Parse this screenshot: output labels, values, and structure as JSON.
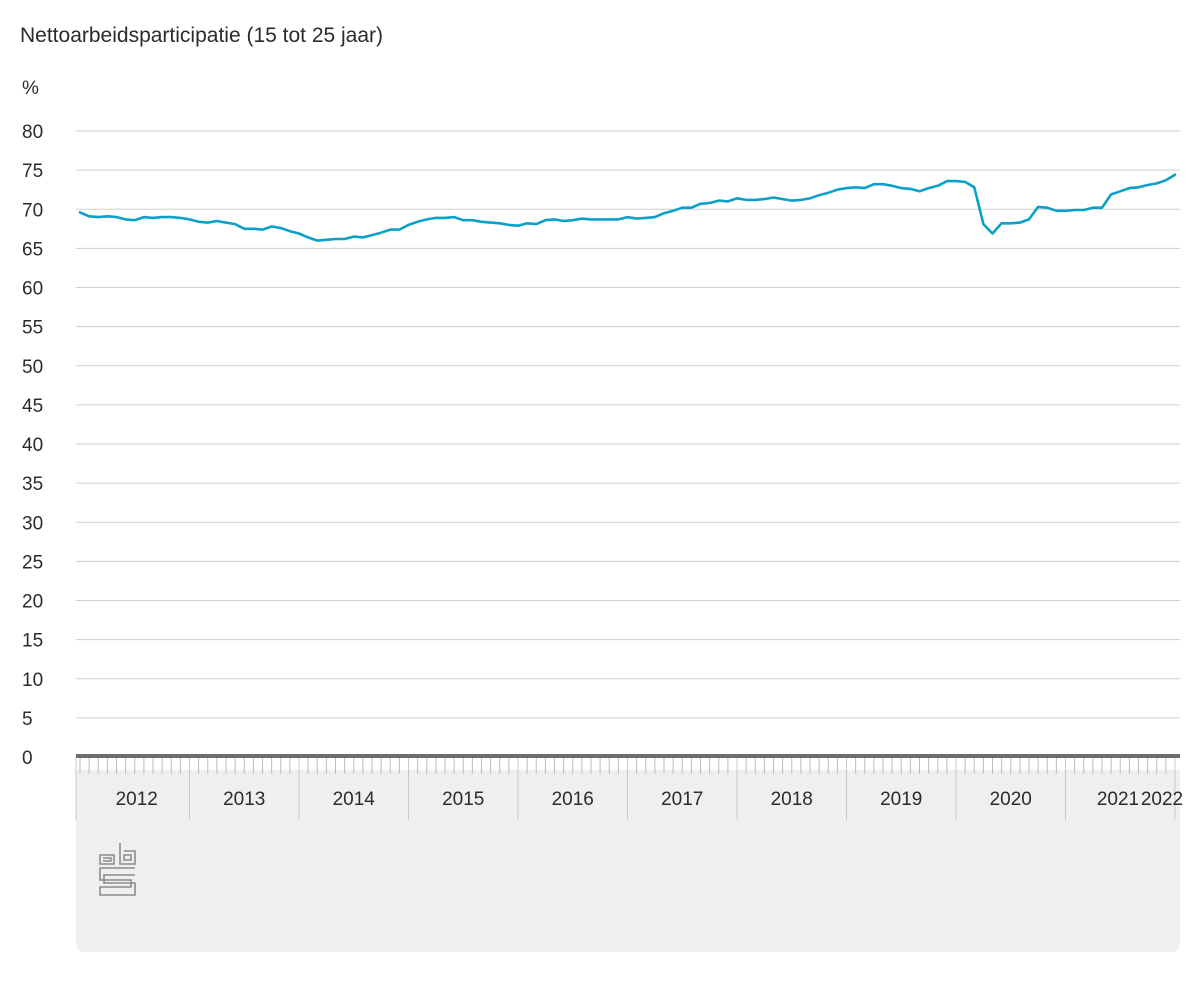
{
  "chart_data": {
    "type": "line",
    "title": "Nettoarbeidsparticipatie (15 tot 25 jaar)",
    "ylabel": "%",
    "xlabel": "",
    "ylim": [
      0,
      80
    ],
    "yticks": [
      "0",
      "5",
      "10",
      "15",
      "20",
      "25",
      "30",
      "35",
      "40",
      "45",
      "50",
      "55",
      "60",
      "65",
      "70",
      "75",
      "80"
    ],
    "x_categories": [
      "2012",
      "2013",
      "2014",
      "2015",
      "2016",
      "2017",
      "2018",
      "2019",
      "2020",
      "2021",
      "2022"
    ],
    "x_range": [
      "2012-01",
      "2022-01"
    ],
    "grid": true,
    "legend": "none",
    "series": [
      {
        "color": "#0aa0c8",
        "x": [
          "2012-01",
          "2012-02",
          "2012-03",
          "2012-04",
          "2012-05",
          "2012-06",
          "2012-07",
          "2012-08",
          "2012-09",
          "2012-10",
          "2012-11",
          "2012-12",
          "2013-01",
          "2013-02",
          "2013-03",
          "2013-04",
          "2013-05",
          "2013-06",
          "2013-07",
          "2013-08",
          "2013-09",
          "2013-10",
          "2013-11",
          "2013-12",
          "2014-01",
          "2014-02",
          "2014-03",
          "2014-04",
          "2014-05",
          "2014-06",
          "2014-07",
          "2014-08",
          "2014-09",
          "2014-10",
          "2014-11",
          "2014-12",
          "2015-01",
          "2015-02",
          "2015-03",
          "2015-04",
          "2015-05",
          "2015-06",
          "2015-07",
          "2015-08",
          "2015-09",
          "2015-10",
          "2015-11",
          "2015-12",
          "2016-01",
          "2016-02",
          "2016-03",
          "2016-04",
          "2016-05",
          "2016-06",
          "2016-07",
          "2016-08",
          "2016-09",
          "2016-10",
          "2016-11",
          "2016-12",
          "2017-01",
          "2017-02",
          "2017-03",
          "2017-04",
          "2017-05",
          "2017-06",
          "2017-07",
          "2017-08",
          "2017-09",
          "2017-10",
          "2017-11",
          "2017-12",
          "2018-01",
          "2018-02",
          "2018-03",
          "2018-04",
          "2018-05",
          "2018-06",
          "2018-07",
          "2018-08",
          "2018-09",
          "2018-10",
          "2018-11",
          "2018-12",
          "2019-01",
          "2019-02",
          "2019-03",
          "2019-04",
          "2019-05",
          "2019-06",
          "2019-07",
          "2019-08",
          "2019-09",
          "2019-10",
          "2019-11",
          "2019-12",
          "2020-01",
          "2020-02",
          "2020-03",
          "2020-04",
          "2020-05",
          "2020-06",
          "2020-07",
          "2020-08",
          "2020-09",
          "2020-10",
          "2020-11",
          "2020-12",
          "2021-01",
          "2021-02",
          "2021-03",
          "2021-04",
          "2021-05",
          "2021-06",
          "2021-07",
          "2021-08",
          "2021-09",
          "2021-10",
          "2021-11",
          "2021-12",
          "2022-01"
        ],
        "values": [
          69.6,
          69.1,
          69.0,
          69.1,
          69.0,
          68.7,
          68.6,
          69.0,
          68.9,
          69.0,
          69.0,
          68.9,
          68.7,
          68.4,
          68.3,
          68.5,
          68.3,
          68.1,
          67.5,
          67.5,
          67.4,
          67.8,
          67.6,
          67.2,
          66.9,
          66.4,
          66.0,
          66.1,
          66.2,
          66.2,
          66.5,
          66.4,
          66.7,
          67.0,
          67.4,
          67.4,
          68.0,
          68.4,
          68.7,
          68.9,
          68.9,
          69.0,
          68.6,
          68.6,
          68.4,
          68.3,
          68.2,
          68.0,
          67.9,
          68.2,
          68.1,
          68.6,
          68.7,
          68.5,
          68.6,
          68.8,
          68.7,
          68.7,
          68.7,
          68.7,
          69.0,
          68.8,
          68.9,
          69.0,
          69.5,
          69.8,
          70.2,
          70.2,
          70.7,
          70.8,
          71.1,
          71.0,
          71.4,
          71.2,
          71.2,
          71.3,
          71.5,
          71.3,
          71.1,
          71.2,
          71.4,
          71.8,
          72.1,
          72.5,
          72.7,
          72.8,
          72.7,
          73.2,
          73.2,
          73.0,
          72.7,
          72.6,
          72.3,
          72.7,
          73.0,
          73.6,
          73.6,
          73.5,
          72.8,
          68.1,
          66.9,
          68.2,
          68.2,
          68.3,
          68.7,
          70.3,
          70.2,
          69.8,
          69.8,
          69.9,
          69.9,
          70.2,
          70.2,
          71.9,
          72.3,
          72.7,
          72.8,
          73.1,
          73.3,
          73.7,
          74.4
        ]
      }
    ]
  }
}
